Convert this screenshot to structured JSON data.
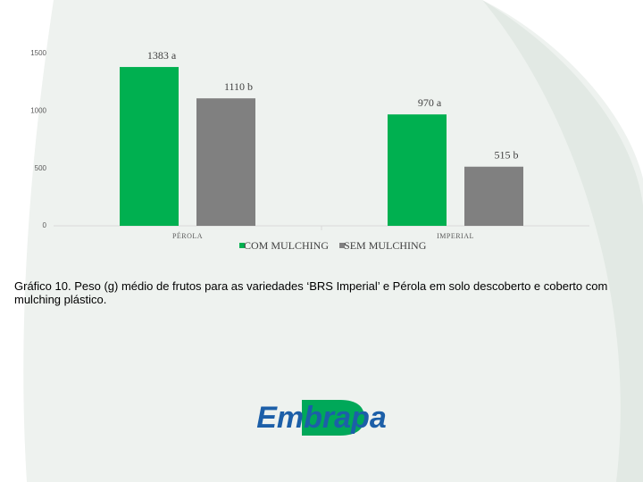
{
  "chart_data": {
    "type": "bar",
    "categories": [
      "PÉROLA",
      "IMPERIAL"
    ],
    "series": [
      {
        "name": "COM MULCHING",
        "color": "#00b050",
        "values": [
          1383,
          970
        ],
        "value_labels": [
          "1383 a",
          "970 a"
        ]
      },
      {
        "name": "SEM MULCHING",
        "color": "#808080",
        "values": [
          1110,
          515
        ],
        "value_labels": [
          "1110 b",
          "515 b"
        ]
      }
    ],
    "ylim": [
      0,
      1500
    ],
    "yticks": [
      0,
      500,
      1000,
      1500
    ],
    "grid": false
  },
  "caption": "Gráfico 10. Peso (g) médio de frutos para as variedades ‘BRS Imperial’ e Pérola em solo descoberto e coberto com mulching plástico.",
  "logo": {
    "text": "Embrapa"
  }
}
